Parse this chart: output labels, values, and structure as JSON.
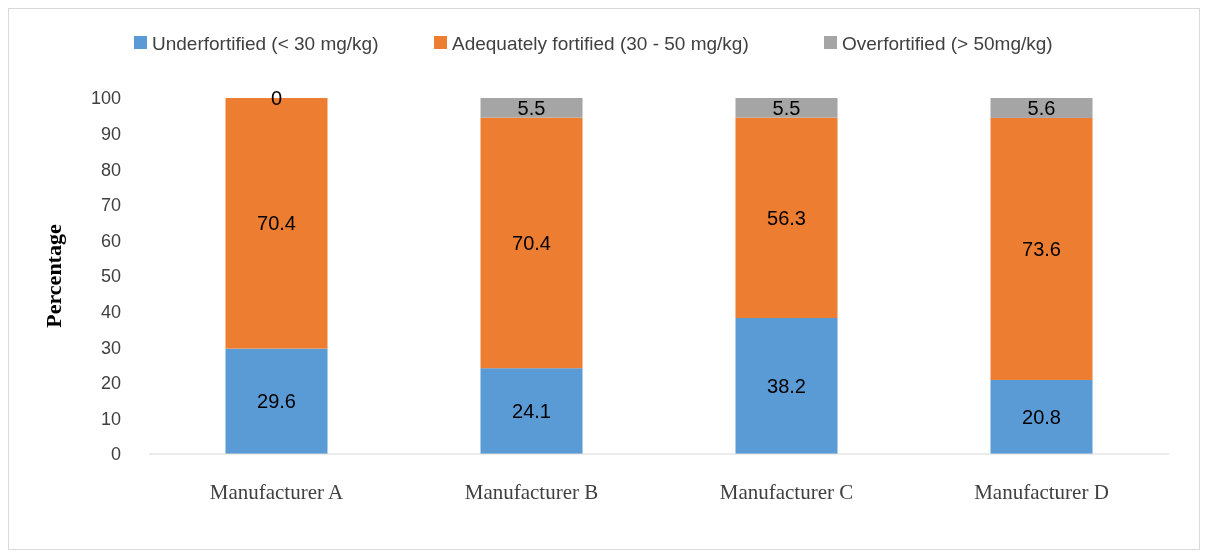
{
  "chart_data": {
    "type": "bar",
    "stacked": true,
    "ylabel": "Percentage",
    "categories": [
      "Manufacturer A",
      "Manufacturer B",
      "Manufacturer C",
      "Manufacturer D"
    ],
    "series": [
      {
        "name": "Underfortified (< 30 mg/kg)",
        "color": "#5b9bd5",
        "values": [
          29.6,
          24.1,
          38.2,
          20.8
        ]
      },
      {
        "name": "Adequately fortified (30 - 50 mg/kg)",
        "color": "#ed7d31",
        "values": [
          70.4,
          70.4,
          56.3,
          73.6
        ]
      },
      {
        "name": "Overfortified (> 50mg/kg)",
        "color": "#a5a5a5",
        "values": [
          0,
          5.5,
          5.5,
          5.6
        ]
      }
    ],
    "ylim": [
      0,
      100
    ],
    "yticks": [
      0,
      10,
      20,
      30,
      40,
      50,
      60,
      70,
      80,
      90,
      100
    ],
    "data_labels": true,
    "legend": "top",
    "grid": false
  }
}
